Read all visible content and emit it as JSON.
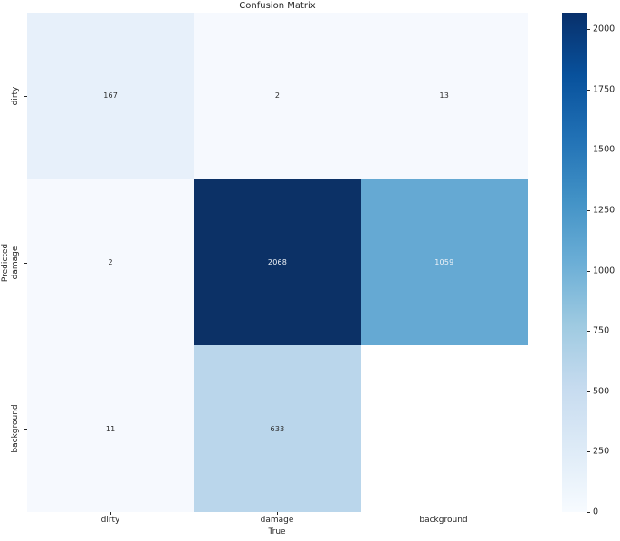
{
  "chart_data": {
    "type": "heatmap",
    "title": "Confusion Matrix",
    "xlabel": "True",
    "ylabel": "Predicted",
    "x_categories": [
      "dirty",
      "damage",
      "background"
    ],
    "y_categories": [
      "dirty",
      "damage",
      "background"
    ],
    "rows": [
      {
        "label": "dirty",
        "values": [
          167,
          2,
          13
        ]
      },
      {
        "label": "damage",
        "values": [
          2,
          2068,
          1059
        ]
      },
      {
        "label": "background",
        "values": [
          11,
          633,
          null
        ]
      }
    ],
    "cell_colors": [
      [
        "#e7f0fa",
        "#f6f9fe",
        "#f6f9fe"
      ],
      [
        "#f6f9fe",
        "#0c3166",
        "#65a9d3"
      ],
      [
        "#f6f9fe",
        "#bad6eb",
        "#ffffff"
      ]
    ],
    "cell_text_colors": [
      [
        "#2b2b2b",
        "#2b2b2b",
        "#2b2b2b"
      ],
      [
        "#2b2b2b",
        "#eef2f7",
        "#eef2f7"
      ],
      [
        "#2b2b2b",
        "#2b2b2b",
        "#2b2b2b"
      ]
    ],
    "colormap": "Blues",
    "grid": false,
    "legend_position": "right",
    "colorbar": {
      "min": 0,
      "max": 2068,
      "ticks": [
        0,
        250,
        500,
        750,
        1000,
        1250,
        1500,
        1750,
        2000
      ],
      "gradient_stops": [
        {
          "pos": 0.0,
          "color": "#f7fbff"
        },
        {
          "pos": 0.125,
          "color": "#deebf7"
        },
        {
          "pos": 0.25,
          "color": "#c6dbef"
        },
        {
          "pos": 0.375,
          "color": "#9ecae1"
        },
        {
          "pos": 0.5,
          "color": "#6baed6"
        },
        {
          "pos": 0.625,
          "color": "#4292c6"
        },
        {
          "pos": 0.75,
          "color": "#2171b5"
        },
        {
          "pos": 0.875,
          "color": "#08519c"
        },
        {
          "pos": 1.0,
          "color": "#08306b"
        }
      ]
    }
  }
}
